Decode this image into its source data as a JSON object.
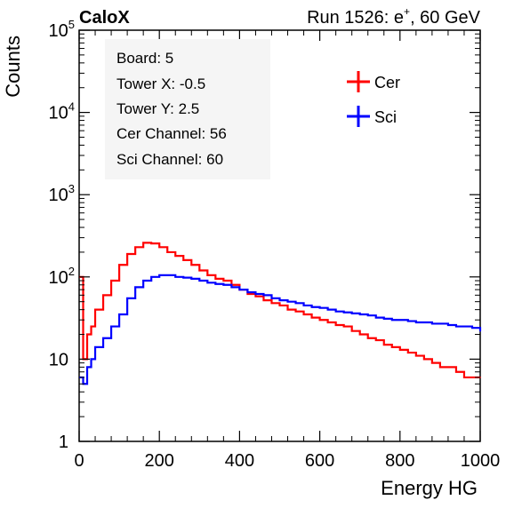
{
  "header": {
    "experiment": "CaloX",
    "run_prefix": "Run 1526: e",
    "run_sup": "+",
    "run_suffix": ", 60 GeV"
  },
  "info_box": [
    "Board: 5",
    "Tower X: -0.5",
    "Tower Y: 2.5",
    "Cer Channel: 56",
    "Sci Channel: 60"
  ],
  "legend": {
    "cer": "Cer",
    "sci": "Sci"
  },
  "colors": {
    "cer": "#ff0000",
    "sci": "#0000ff"
  },
  "chart_data": {
    "type": "line",
    "style": "step histogram",
    "xlabel": "Energy HG",
    "ylabel": "Counts",
    "xlim": [
      0,
      1000
    ],
    "ylim": [
      1,
      100000
    ],
    "yscale": "log",
    "grid": false,
    "legend_position": "top-right",
    "x_ticks": [
      "0",
      "200",
      "400",
      "600",
      "800",
      "1000"
    ],
    "y_ticks": [
      {
        "value": 1,
        "label": "1"
      },
      {
        "value": 10,
        "label": "10"
      },
      {
        "value": 100,
        "label": "10",
        "exp": "2"
      },
      {
        "value": 1000,
        "label": "10",
        "exp": "3"
      },
      {
        "value": 10000,
        "label": "10",
        "exp": "4"
      },
      {
        "value": 100000,
        "label": "10",
        "exp": "5"
      }
    ],
    "series": [
      {
        "name": "Cer",
        "color": "#ff0000",
        "x": [
          0,
          10,
          20,
          30,
          40,
          60,
          80,
          100,
          120,
          140,
          160,
          180,
          200,
          220,
          240,
          260,
          280,
          300,
          320,
          340,
          360,
          380,
          400,
          420,
          440,
          460,
          480,
          500,
          520,
          540,
          560,
          580,
          600,
          620,
          640,
          660,
          680,
          700,
          720,
          740,
          760,
          780,
          800,
          820,
          840,
          860,
          880,
          900,
          920,
          940,
          960,
          980,
          1000
        ],
        "values": [
          100,
          10,
          20,
          25,
          40,
          60,
          90,
          140,
          190,
          230,
          260,
          255,
          230,
          200,
          180,
          160,
          140,
          120,
          105,
          95,
          90,
          80,
          70,
          62,
          58,
          52,
          48,
          45,
          40,
          38,
          35,
          32,
          30,
          28,
          26,
          25,
          22,
          20,
          18,
          17,
          15,
          14,
          13,
          12,
          11,
          10,
          9,
          8,
          8,
          7,
          6,
          6,
          6
        ]
      },
      {
        "name": "Sci",
        "color": "#0000ff",
        "x": [
          0,
          10,
          20,
          30,
          40,
          60,
          80,
          100,
          120,
          140,
          160,
          180,
          200,
          220,
          240,
          260,
          280,
          300,
          320,
          340,
          360,
          380,
          400,
          420,
          440,
          460,
          480,
          500,
          520,
          540,
          560,
          580,
          600,
          620,
          640,
          660,
          680,
          700,
          720,
          740,
          760,
          780,
          800,
          820,
          840,
          860,
          880,
          900,
          920,
          940,
          960,
          980,
          1000
        ],
        "values": [
          6,
          5,
          8,
          10,
          14,
          18,
          25,
          35,
          55,
          75,
          90,
          100,
          105,
          105,
          100,
          98,
          95,
          90,
          85,
          82,
          80,
          75,
          70,
          65,
          62,
          60,
          55,
          52,
          50,
          48,
          45,
          43,
          42,
          40,
          38,
          37,
          36,
          35,
          34,
          32,
          31,
          30,
          30,
          29,
          28,
          28,
          27,
          27,
          26,
          25,
          25,
          24,
          22
        ]
      }
    ]
  }
}
